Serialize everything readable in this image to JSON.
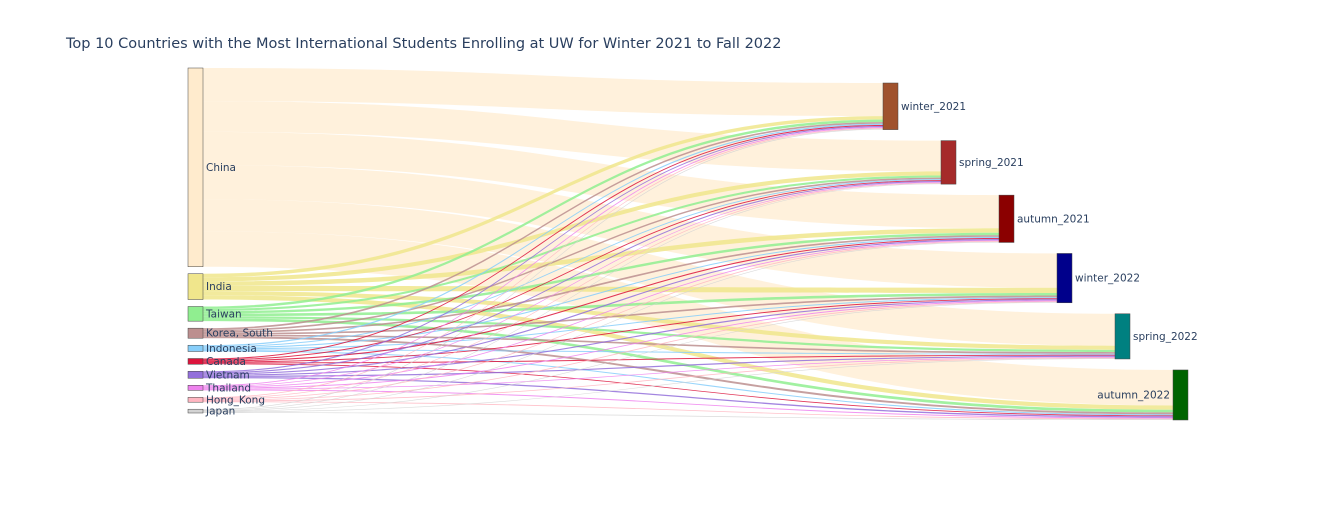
{
  "title": "Top 10 Countries with the Most International Students Enrolling at UW for Winter 2021 to Fall 2022",
  "chart_data": {
    "type": "sankey",
    "sources": [
      {
        "name": "China",
        "color": "#ffebcd"
      },
      {
        "name": "India",
        "color": "#f0e68c"
      },
      {
        "name": "Taiwan",
        "color": "#90ee90"
      },
      {
        "name": "Korea, South",
        "color": "#bc8f8f"
      },
      {
        "name": "Indonesia",
        "color": "#87cefa"
      },
      {
        "name": "Canada",
        "color": "#dc143c"
      },
      {
        "name": "Vietnam",
        "color": "#9370db"
      },
      {
        "name": "Thailand",
        "color": "#ee82ee"
      },
      {
        "name": "Hong_Kong",
        "color": "#ffb6c1"
      },
      {
        "name": "Japan",
        "color": "#d3d3d3"
      }
    ],
    "targets": [
      {
        "name": "winter_2021",
        "color": "#a0522d"
      },
      {
        "name": "spring_2021",
        "color": "#a52a2a"
      },
      {
        "name": "autumn_2021",
        "color": "#8b0000"
      },
      {
        "name": "winter_2022",
        "color": "#00008b"
      },
      {
        "name": "spring_2022",
        "color": "#008080"
      },
      {
        "name": "autumn_2022",
        "color": "#006400"
      }
    ],
    "link_values": [
      [
        28,
        26,
        28,
        29,
        27,
        30
      ],
      [
        3.0,
        3.5,
        3.8,
        4.4,
        3.5,
        3.6
      ],
      [
        2.1,
        1.8,
        2.1,
        2.2,
        1.9,
        2.3
      ],
      [
        1.4,
        1.3,
        1.4,
        1.4,
        1.4,
        1.6
      ],
      [
        1.0,
        0.8,
        0.9,
        0.9,
        0.8,
        0.9
      ],
      [
        0.9,
        0.8,
        0.9,
        0.8,
        0.8,
        0.7
      ],
      [
        0.9,
        0.9,
        1.0,
        1.0,
        1.0,
        1.1
      ],
      [
        0.8,
        0.6,
        0.7,
        0.8,
        0.6,
        0.8
      ],
      [
        0.7,
        0.6,
        0.7,
        0.7,
        0.7,
        0.7
      ],
      [
        0.6,
        0.5,
        0.5,
        0.5,
        0.5,
        0.6
      ]
    ]
  }
}
